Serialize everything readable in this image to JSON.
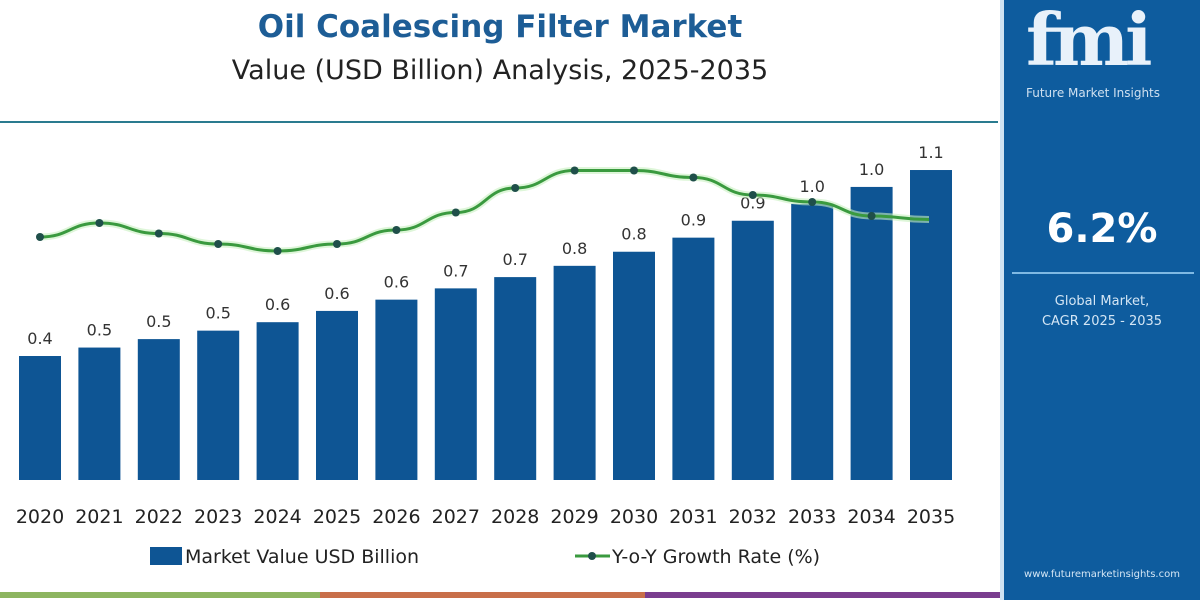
{
  "header": {
    "title": "Oil Coalescing Filter Market",
    "subtitle": "Value (USD Billion) Analysis, 2025-2035"
  },
  "side_panel": {
    "logo_text": "fmi",
    "logo_subtitle": "Future Market Insights",
    "cagr_value": "6.2%",
    "cagr_label_line1": "Global Market,",
    "cagr_label_line2": "CAGR 2025 - 2035",
    "website": "www.futuremarketinsights.com"
  },
  "colors": {
    "bar": "#0e5594",
    "line": "#3a9a3f",
    "marker": "#1f4f4a",
    "title": "#1d5d96",
    "panel": "#0e5c9e",
    "strip_green": "#8db560",
    "strip_orange": "#c86f4a",
    "strip_purple": "#7a3d8f"
  },
  "chart_data": {
    "type": "bar",
    "title": "Oil Coalescing Filter Market",
    "subtitle": "Value (USD Billion) Analysis, 2025-2035",
    "categories": [
      "2020",
      "2021",
      "2022",
      "2023",
      "2024",
      "2025",
      "2026",
      "2027",
      "2028",
      "2029",
      "2030",
      "2031",
      "2032",
      "2033",
      "2034",
      "2035"
    ],
    "grid": false,
    "legend_placement": "bottom",
    "series": [
      {
        "name": "Market Value USD Billion",
        "type": "bar",
        "values": [
          0.44,
          0.47,
          0.5,
          0.53,
          0.56,
          0.6,
          0.64,
          0.68,
          0.72,
          0.76,
          0.81,
          0.86,
          0.92,
          0.98,
          1.04,
          1.1
        ],
        "labels": [
          "0.4",
          "0.5",
          "0.5",
          "0.5",
          "0.6",
          "0.6",
          "0.6",
          "0.7",
          "0.7",
          "0.8",
          "0.8",
          "0.9",
          "0.9",
          "1.0",
          "1.0",
          "1.1"
        ]
      },
      {
        "name": "Y-o-Y Growth Rate (%)",
        "type": "line",
        "values": [
          5.8,
          6.2,
          5.9,
          5.6,
          5.4,
          5.6,
          6.0,
          6.5,
          7.2,
          7.7,
          7.7,
          7.5,
          7.0,
          6.8,
          6.4,
          6.3
        ]
      }
    ]
  }
}
